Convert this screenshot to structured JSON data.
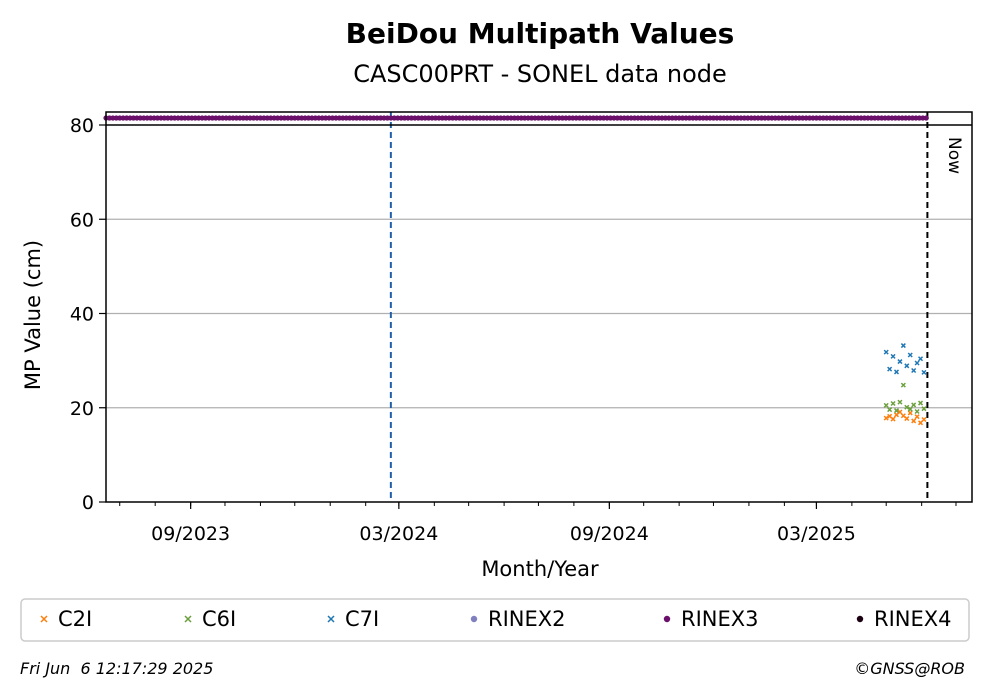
{
  "chart_data": {
    "type": "scatter",
    "title": "BeiDou Multipath Values",
    "subtitle": "CASC00PRT - SONEL data node",
    "xlabel": "Month/Year",
    "ylabel": "MP Value (cm)",
    "x_ticks": [
      "09/2023",
      "03/2024",
      "09/2024",
      "03/2025"
    ],
    "y_ticks": [
      "0",
      "20",
      "40",
      "60",
      "80"
    ],
    "xlim": [
      "2023-06-19",
      "2025-07-15"
    ],
    "ylim": [
      0,
      80
    ],
    "grid": "horizontal",
    "legend_position": "bottom",
    "now_label": "Now",
    "now_date": "2025-06-06",
    "event_line_date": "2024-02-23",
    "series": [
      {
        "name": "C2I",
        "marker": "x",
        "color": "#ff7f0e",
        "x": [
          "2025-05-01",
          "2025-05-04",
          "2025-05-07",
          "2025-05-10",
          "2025-05-13",
          "2025-05-16",
          "2025-05-19",
          "2025-05-22",
          "2025-05-25",
          "2025-05-28",
          "2025-05-31",
          "2025-06-03"
        ],
        "y": [
          17.8,
          18.2,
          17.6,
          18.5,
          19.1,
          18.3,
          17.7,
          18.9,
          17.2,
          18.1,
          16.8,
          17.5
        ]
      },
      {
        "name": "C6I",
        "marker": "x",
        "color": "#6a9f3c",
        "x": [
          "2025-05-01",
          "2025-05-04",
          "2025-05-07",
          "2025-05-10",
          "2025-05-13",
          "2025-05-16",
          "2025-05-19",
          "2025-05-22",
          "2025-05-25",
          "2025-05-28",
          "2025-05-31",
          "2025-06-03"
        ],
        "y": [
          20.5,
          19.6,
          20.9,
          19.4,
          21.2,
          24.8,
          20.1,
          19.7,
          20.6,
          19.2,
          21.0,
          19.8
        ]
      },
      {
        "name": "C7I",
        "marker": "x",
        "color": "#1f77b4",
        "x": [
          "2025-05-01",
          "2025-05-04",
          "2025-05-07",
          "2025-05-10",
          "2025-05-13",
          "2025-05-16",
          "2025-05-19",
          "2025-05-22",
          "2025-05-25",
          "2025-05-28",
          "2025-05-31",
          "2025-06-03"
        ],
        "y": [
          31.8,
          28.2,
          30.9,
          27.6,
          29.8,
          33.2,
          28.9,
          31.2,
          27.9,
          29.5,
          30.4,
          27.5
        ]
      },
      {
        "name": "RINEX2",
        "marker": "circle",
        "color": "#8080c0",
        "x": [],
        "y": []
      },
      {
        "name": "RINEX3",
        "marker": "circle",
        "color": "#6a0f6a",
        "x_range": [
          "2023-06-19",
          "2025-06-05"
        ],
        "y": 81.5
      },
      {
        "name": "RINEX4",
        "marker": "circle",
        "color": "#1a0010",
        "x": [],
        "y": []
      }
    ]
  },
  "footer": {
    "timestamp": "Fri Jun  6 12:17:29 2025",
    "credit": "©GNSS@ROB"
  }
}
